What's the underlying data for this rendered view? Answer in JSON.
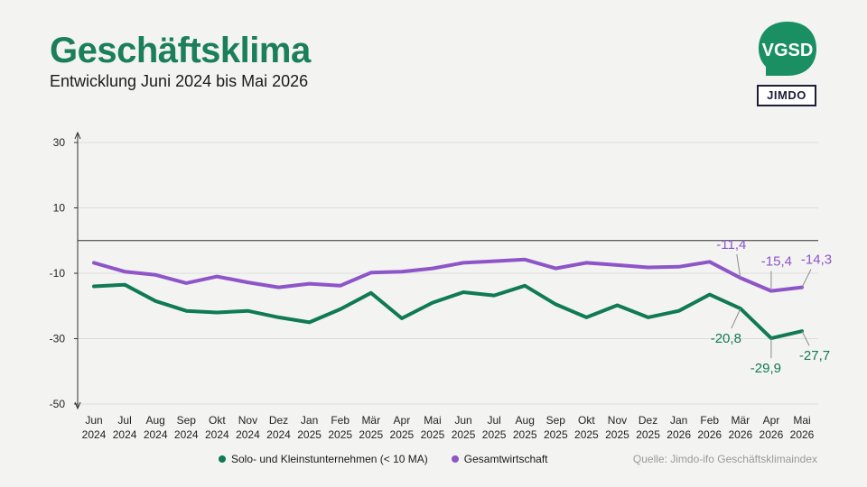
{
  "header": {
    "title": "Geschäftsklima",
    "subtitle": "Entwicklung Juni 2024 bis Mai 2026"
  },
  "logos": {
    "vgsd_text": "VGSD",
    "jimdo_text": "JIMDO"
  },
  "footer": {
    "source": "Quelle: Jimdo-ifo Geschäftsklimaindex"
  },
  "colors": {
    "title": "#1a7f5a",
    "solo": "#0f7a55",
    "gesamt": "#8e55c9",
    "grid": "#dcdcdc",
    "axis": "#333333",
    "vgsd_logo": "#1a8f62"
  },
  "chart_data": {
    "type": "line",
    "title": "Geschäftsklima",
    "subtitle": "Entwicklung Juni 2024 bis Mai 2026",
    "categories": [
      [
        "Jun",
        "2024"
      ],
      [
        "Jul",
        "2024"
      ],
      [
        "Aug",
        "2024"
      ],
      [
        "Sep",
        "2024"
      ],
      [
        "Okt",
        "2024"
      ],
      [
        "Nov",
        "2024"
      ],
      [
        "Dez",
        "2024"
      ],
      [
        "Jan",
        "2025"
      ],
      [
        "Feb",
        "2025"
      ],
      [
        "Mär",
        "2025"
      ],
      [
        "Apr",
        "2025"
      ],
      [
        "Mai",
        "2025"
      ],
      [
        "Jun",
        "2025"
      ],
      [
        "Jul",
        "2025"
      ],
      [
        "Aug",
        "2025"
      ],
      [
        "Sep",
        "2025"
      ],
      [
        "Okt",
        "2025"
      ],
      [
        "Nov",
        "2025"
      ],
      [
        "Dez",
        "2025"
      ],
      [
        "Jan",
        "2026"
      ],
      [
        "Feb",
        "2026"
      ],
      [
        "Mär",
        "2026"
      ],
      [
        "Apr",
        "2026"
      ],
      [
        "Mai",
        "2026"
      ]
    ],
    "yticks": [
      30,
      10,
      -10,
      -30,
      -50
    ],
    "ylim": [
      -50,
      30
    ],
    "series": [
      {
        "name": "Solo- und Kleinstunternehmen (< 10 MA)",
        "color": "#0f7a55",
        "values": [
          -14.0,
          -13.5,
          -18.5,
          -21.5,
          -22.0,
          -21.5,
          -23.5,
          -25.0,
          -21.0,
          -16.0,
          -23.8,
          -19.0,
          -15.8,
          -16.8,
          -13.8,
          -19.5,
          -23.5,
          -19.8,
          -23.5,
          -21.5,
          -16.5,
          -20.8,
          -29.9,
          -27.7
        ],
        "labels": {
          "21": "-20,8",
          "22": "-29,9",
          "23": "-27,7"
        }
      },
      {
        "name": "Gesamtwirtschaft",
        "color": "#8e55c9",
        "values": [
          -6.8,
          -9.5,
          -10.5,
          -13.0,
          -11.0,
          -12.8,
          -14.3,
          -13.2,
          -13.8,
          -9.8,
          -9.5,
          -8.5,
          -6.8,
          -6.3,
          -5.8,
          -8.5,
          -6.8,
          -7.5,
          -8.2,
          -8.0,
          -6.5,
          -11.4,
          -15.4,
          -14.3
        ],
        "labels": {
          "21": "-11,4",
          "22": "-15,4",
          "23": "-14,3"
        }
      }
    ],
    "zero_line": 0,
    "grid": true
  }
}
